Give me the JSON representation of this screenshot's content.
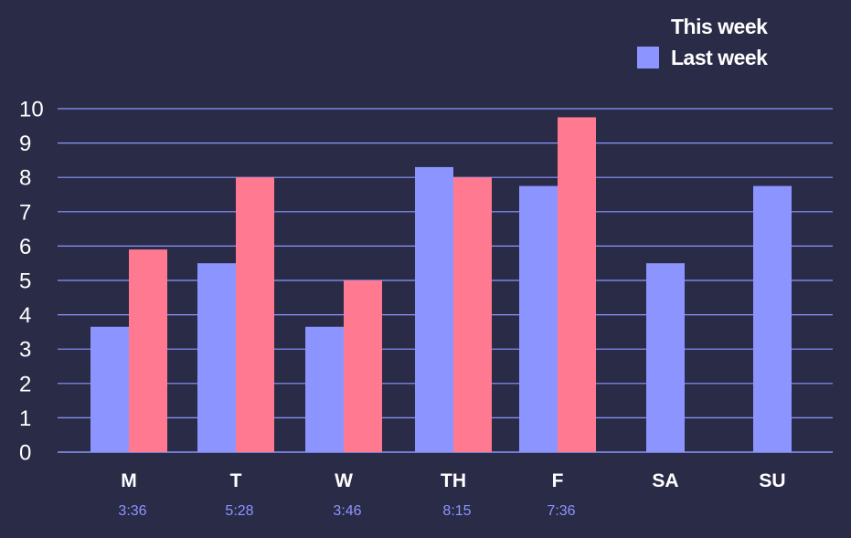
{
  "chart_data": {
    "type": "bar",
    "categories": [
      "M",
      "T",
      "W",
      "TH",
      "F",
      "SA",
      "SU"
    ],
    "sublabels": [
      "3:36",
      "5:28",
      "3:46",
      "8:15",
      "7:36",
      "",
      ""
    ],
    "series": [
      {
        "name": "Last week",
        "color": "#8c95ff",
        "values": [
          3.65,
          5.5,
          3.65,
          8.3,
          7.75,
          5.5,
          7.75
        ]
      },
      {
        "name": "This week",
        "color": "#ff7a90",
        "values": [
          5.9,
          8.0,
          5.0,
          8.0,
          9.75,
          null,
          null
        ]
      }
    ],
    "yticks": [
      "0",
      "1",
      "2",
      "3",
      "4",
      "5",
      "6",
      "7",
      "8",
      "9",
      "10"
    ],
    "ylim": [
      0,
      10
    ],
    "grid": true,
    "legend_placement": "top-right",
    "title": "",
    "xlabel": "",
    "ylabel": ""
  },
  "legend": {
    "items": [
      {
        "label": "This week",
        "color": ""
      },
      {
        "label": "Last week",
        "color": "#8c95ff"
      }
    ]
  }
}
